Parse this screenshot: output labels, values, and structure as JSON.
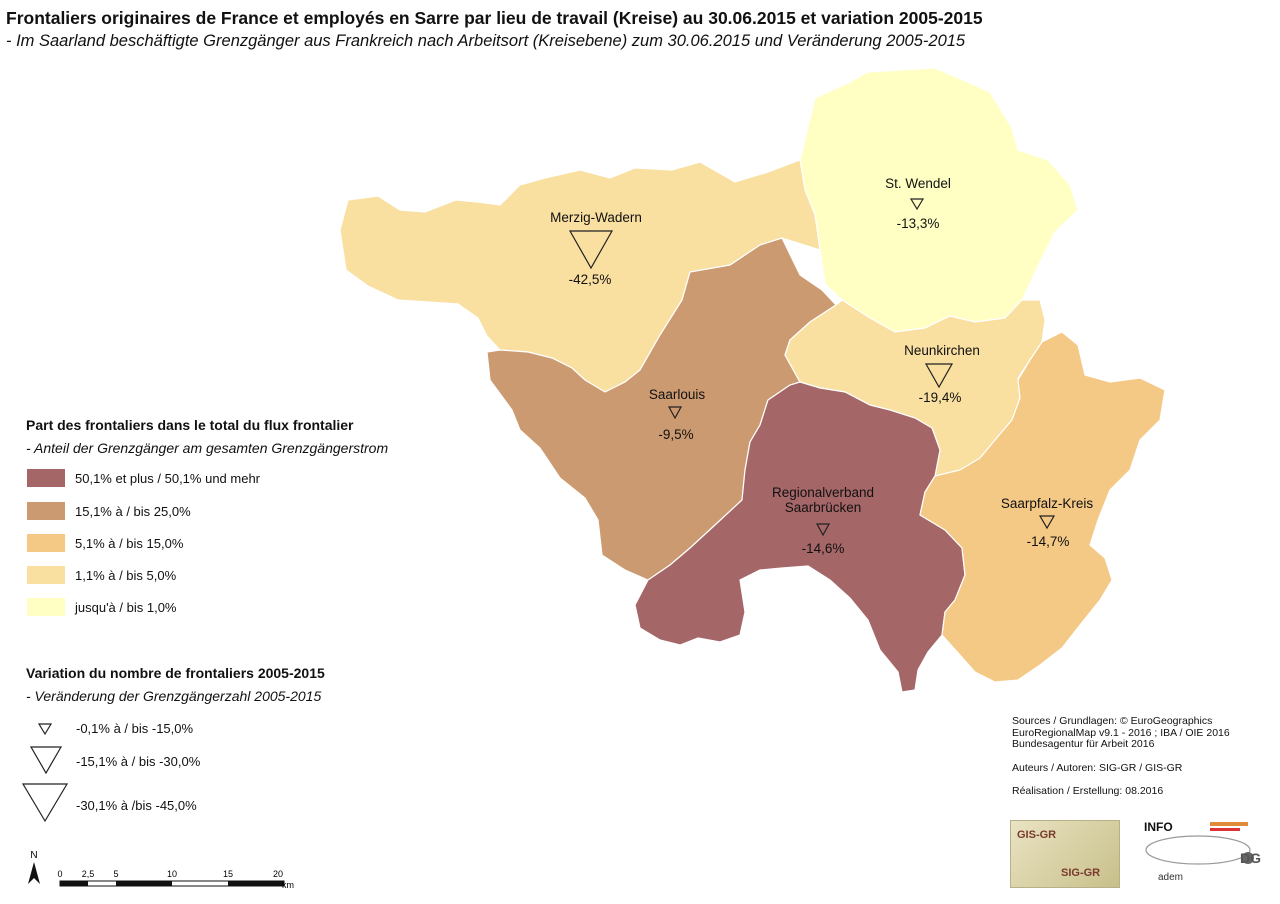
{
  "title": "Frontaliers originaires de France et employés en Sarre par lieu de travail (Kreise) au 30.06.2015 et variation 2005-2015",
  "subtitle": "- Im Saarland beschäftigte Grenzgänger aus Frankreich nach Arbeitsort (Kreisebene) zum 30.06.2015 und Veränderung 2005-2015",
  "regions": [
    {
      "name": "St. Wendel",
      "change": "-13,3%",
      "color": "#ffffc4"
    },
    {
      "name": "Merzig-Wadern",
      "change": "-42,5%",
      "color": "#f9dfa0"
    },
    {
      "name": "Saarlouis",
      "change": "-9,5%",
      "color": "#cc9a70"
    },
    {
      "name": "Neunkirchen",
      "change": "-19,4%",
      "color": "#f9dfa0"
    },
    {
      "name": "Regionalverband",
      "name2": "Saarbrücken",
      "change": "-14,6%",
      "color": "#a56668"
    },
    {
      "name": "Saarpfalz-Kreis",
      "change": "-14,7%",
      "color": "#f4c885"
    }
  ],
  "legend_share": {
    "title": "Part des frontaliers dans le total du flux frontalier",
    "subtitle": "- Anteil der Grenzgänger am gesamten Grenzgängerstrom",
    "items": [
      {
        "label": "50,1% et plus / 50,1% und mehr",
        "color": "#a56668"
      },
      {
        "label": "15,1% à / bis 25,0%",
        "color": "#cc9a70"
      },
      {
        "label": "5,1% à / bis 15,0%",
        "color": "#f4c885"
      },
      {
        "label": "1,1% à / bis 5,0%",
        "color": "#f9dfa0"
      },
      {
        "label": "jusqu'à / bis 1,0%",
        "color": "#ffffc4"
      }
    ]
  },
  "legend_change": {
    "title": "Variation du nombre de frontaliers 2005-2015",
    "subtitle": "- Veränderung der Grenzgängerzahl 2005-2015",
    "items": [
      {
        "label": "-0,1% à / bis -15,0%"
      },
      {
        "label": "-15,1% à / bis -30,0%"
      },
      {
        "label": "-30,1% à /bis -45,0%"
      }
    ]
  },
  "sources": {
    "line1": "Sources / Grundlagen: © EuroGeographics",
    "line2": "EuroRegionalMap v9.1 - 2016 ; IBA / OIE 2016",
    "line3": "Bundesagentur für Arbeit 2016",
    "authors": "Auteurs / Autoren: SIG-GR / GIS-GR",
    "realisation": "Réalisation / Erstellung: 08.2016"
  },
  "scale": {
    "north": "N",
    "ticks": [
      "0",
      "2,5",
      "5",
      "10",
      "15",
      "20"
    ],
    "unit": "km"
  },
  "logos": {
    "gis_text": "GIS-GR",
    "sig_text": "SIG-GR",
    "info_text": "INFO",
    "adem_text": "adem",
    "dg_text": "DG"
  }
}
